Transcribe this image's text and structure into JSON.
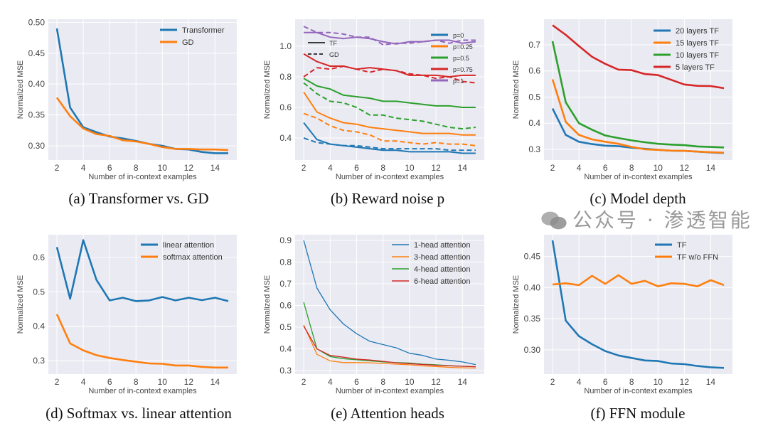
{
  "captions": [
    "(a) Transformer vs. GD",
    "(b) Reward noise p",
    "(c) Model depth",
    "(d) Softmax vs. linear attention",
    "(e) Attention heads",
    "(f) FFN module"
  ],
  "watermark": "公众号 · 渗透智能",
  "chart_data": [
    {
      "type": "line",
      "title": "(a) Transformer vs. GD",
      "xlabel": "Number of in-context examples",
      "ylabel": "Normalized MSE",
      "xlim": [
        1.35,
        15.65
      ],
      "ylim": [
        0.277,
        0.505
      ],
      "xticks": [
        2,
        4,
        6,
        8,
        10,
        12,
        14
      ],
      "yticks": [
        0.3,
        0.35,
        0.4,
        0.45,
        0.5
      ],
      "ytick_decimals": 2,
      "grid": true,
      "legend": "top-right",
      "x": [
        2,
        3,
        4,
        5,
        6,
        7,
        8,
        9,
        10,
        11,
        12,
        13,
        14,
        15
      ],
      "series": [
        {
          "name": "Transformer",
          "color": "#1f77b4",
          "style": "solid",
          "values": [
            0.49,
            0.362,
            0.33,
            0.322,
            0.315,
            0.312,
            0.308,
            0.303,
            0.3,
            0.295,
            0.294,
            0.29,
            0.288,
            0.288
          ]
        },
        {
          "name": "GD",
          "color": "#ff7f0e",
          "style": "solid",
          "values": [
            0.378,
            0.348,
            0.328,
            0.319,
            0.316,
            0.309,
            0.307,
            0.303,
            0.298,
            0.295,
            0.295,
            0.294,
            0.294,
            0.293
          ]
        }
      ]
    },
    {
      "type": "line",
      "title": "(b) Reward noise p",
      "xlabel": "Number of in-context examples",
      "ylabel": "Normalized MSE",
      "xlim": [
        1.35,
        15.65
      ],
      "ylim": [
        0.256,
        1.177
      ],
      "xticks": [
        2,
        4,
        6,
        8,
        10,
        12,
        14
      ],
      "yticks": [
        0.4,
        0.6,
        0.8,
        1.0
      ],
      "ytick_decimals": 1,
      "grid": true,
      "legend": "top-right",
      "style_legend": [
        {
          "name": "TF",
          "style": "solid"
        },
        {
          "name": "GD",
          "style": "dashed"
        }
      ],
      "x": [
        2,
        3,
        4,
        5,
        6,
        7,
        8,
        9,
        10,
        11,
        12,
        13,
        14,
        15
      ],
      "series": [
        {
          "name": "p=0",
          "color": "#1f77b4",
          "style": "solid",
          "values": [
            0.5,
            0.39,
            0.36,
            0.35,
            0.34,
            0.33,
            0.32,
            0.32,
            0.31,
            0.31,
            0.31,
            0.31,
            0.3,
            0.3
          ]
        },
        {
          "name": "p=0 GD",
          "legend": false,
          "color": "#1f77b4",
          "style": "dashed",
          "values": [
            0.4,
            0.37,
            0.36,
            0.35,
            0.35,
            0.34,
            0.33,
            0.33,
            0.33,
            0.33,
            0.33,
            0.32,
            0.32,
            0.32
          ]
        },
        {
          "name": "p=0.25",
          "color": "#ff7f0e",
          "style": "solid",
          "values": [
            0.7,
            0.57,
            0.53,
            0.5,
            0.49,
            0.47,
            0.46,
            0.45,
            0.44,
            0.43,
            0.43,
            0.43,
            0.42,
            0.42
          ]
        },
        {
          "name": "p=0.25 GD",
          "legend": false,
          "color": "#ff7f0e",
          "style": "dashed",
          "values": [
            0.56,
            0.53,
            0.48,
            0.45,
            0.44,
            0.42,
            0.38,
            0.38,
            0.37,
            0.36,
            0.37,
            0.36,
            0.36,
            0.35
          ]
        },
        {
          "name": "p=0.5",
          "color": "#2ca02c",
          "style": "solid",
          "values": [
            0.79,
            0.74,
            0.72,
            0.68,
            0.67,
            0.66,
            0.64,
            0.64,
            0.63,
            0.62,
            0.61,
            0.61,
            0.6,
            0.6
          ]
        },
        {
          "name": "p=0.5 GD",
          "legend": false,
          "color": "#2ca02c",
          "style": "dashed",
          "values": [
            0.76,
            0.69,
            0.64,
            0.63,
            0.6,
            0.55,
            0.55,
            0.53,
            0.52,
            0.51,
            0.49,
            0.47,
            0.46,
            0.47
          ]
        },
        {
          "name": "p=0.75",
          "color": "#d62728",
          "style": "solid",
          "values": [
            0.95,
            0.9,
            0.87,
            0.87,
            0.85,
            0.86,
            0.85,
            0.84,
            0.81,
            0.81,
            0.81,
            0.8,
            0.81,
            0.81
          ]
        },
        {
          "name": "p=0.75 GD",
          "legend": false,
          "color": "#d62728",
          "style": "dashed",
          "values": [
            0.8,
            0.86,
            0.85,
            0.87,
            0.85,
            0.83,
            0.85,
            0.84,
            0.82,
            0.81,
            0.79,
            0.8,
            0.77,
            0.76
          ]
        },
        {
          "name": "p=1",
          "color": "#9467bd",
          "style": "solid",
          "values": [
            1.09,
            1.09,
            1.06,
            1.05,
            1.06,
            1.05,
            1.03,
            1.015,
            1.03,
            1.03,
            1.04,
            1.04,
            1.02,
            1.03
          ]
        },
        {
          "name": "p=1 GD",
          "legend": false,
          "color": "#9467bd",
          "style": "dashed",
          "values": [
            1.13,
            1.09,
            1.09,
            1.08,
            1.06,
            1.06,
            1.01,
            1.02,
            1.02,
            1.03,
            1.04,
            1.02,
            1.04,
            1.04
          ]
        }
      ]
    },
    {
      "type": "line",
      "title": "(c) Model depth",
      "xlabel": "Number of in-context examples",
      "ylabel": "Normalized MSE",
      "xlim": [
        1.35,
        15.65
      ],
      "ylim": [
        0.259,
        0.798
      ],
      "xticks": [
        2,
        4,
        6,
        8,
        10,
        12,
        14
      ],
      "yticks": [
        0.3,
        0.4,
        0.5,
        0.6,
        0.7
      ],
      "ytick_decimals": 1,
      "grid": true,
      "legend": "top-right",
      "x": [
        2,
        3,
        4,
        5,
        6,
        7,
        8,
        9,
        10,
        11,
        12,
        13,
        14,
        15
      ],
      "series": [
        {
          "name": "20 layers TF",
          "color": "#1f77b4",
          "style": "solid",
          "values": [
            0.456,
            0.355,
            0.329,
            0.32,
            0.314,
            0.312,
            0.306,
            0.302,
            0.298,
            0.295,
            0.294,
            0.291,
            0.288,
            0.286
          ]
        },
        {
          "name": "15 layers TF",
          "color": "#ff7f0e",
          "style": "solid",
          "values": [
            0.568,
            0.405,
            0.355,
            0.338,
            0.329,
            0.321,
            0.309,
            0.3,
            0.298,
            0.295,
            0.294,
            0.291,
            0.289,
            0.287
          ]
        },
        {
          "name": "10 layers TF",
          "color": "#2ca02c",
          "style": "solid",
          "values": [
            0.714,
            0.48,
            0.4,
            0.375,
            0.353,
            0.343,
            0.334,
            0.327,
            0.321,
            0.318,
            0.316,
            0.311,
            0.309,
            0.307
          ]
        },
        {
          "name": "5 layers TF",
          "color": "#d62728",
          "style": "solid",
          "values": [
            0.775,
            0.738,
            0.695,
            0.654,
            0.627,
            0.605,
            0.603,
            0.588,
            0.584,
            0.566,
            0.548,
            0.543,
            0.542,
            0.534
          ]
        }
      ]
    },
    {
      "type": "line",
      "title": "(d) Softmax vs. linear attention",
      "xlabel": "Number of in-context examples",
      "ylabel": "Normalized MSE",
      "xlim": [
        1.35,
        15.65
      ],
      "ylim": [
        0.261,
        0.666
      ],
      "xticks": [
        2,
        4,
        6,
        8,
        10,
        12,
        14
      ],
      "yticks": [
        0.3,
        0.4,
        0.5,
        0.6
      ],
      "ytick_decimals": 1,
      "grid": true,
      "legend": "top-right",
      "x": [
        2,
        3,
        4,
        5,
        6,
        7,
        8,
        9,
        10,
        11,
        12,
        13,
        14,
        15
      ],
      "series": [
        {
          "name": "linear attention",
          "color": "#1f77b4",
          "style": "solid",
          "values": [
            0.63,
            0.48,
            0.65,
            0.535,
            0.475,
            0.483,
            0.473,
            0.475,
            0.485,
            0.475,
            0.483,
            0.476,
            0.483,
            0.473
          ]
        },
        {
          "name": "softmax attention",
          "color": "#ff7f0e",
          "style": "solid",
          "values": [
            0.435,
            0.35,
            0.33,
            0.316,
            0.308,
            0.302,
            0.297,
            0.292,
            0.291,
            0.286,
            0.286,
            0.282,
            0.28,
            0.28
          ]
        }
      ]
    },
    {
      "type": "line",
      "title": "(e) Attention heads",
      "xlabel": "Number of in-context examples",
      "ylabel": "Normalized MSE",
      "xlim": [
        1.35,
        15.65
      ],
      "ylim": [
        0.284,
        0.926
      ],
      "xticks": [
        2,
        4,
        6,
        8,
        10,
        12,
        14
      ],
      "yticks": [
        0.3,
        0.4,
        0.5,
        0.6,
        0.7,
        0.8,
        0.9
      ],
      "ytick_decimals": 1,
      "grid": true,
      "legend": "top-right",
      "thin": true,
      "x": [
        2,
        3,
        4,
        5,
        6,
        7,
        8,
        9,
        10,
        11,
        12,
        13,
        14,
        15
      ],
      "series": [
        {
          "name": "1-head attention",
          "color": "#1f77b4",
          "style": "solid",
          "values": [
            0.9,
            0.68,
            0.58,
            0.515,
            0.47,
            0.435,
            0.42,
            0.405,
            0.38,
            0.37,
            0.353,
            0.348,
            0.34,
            0.328
          ]
        },
        {
          "name": "3-head attention",
          "color": "#ff7f0e",
          "style": "solid",
          "values": [
            0.51,
            0.375,
            0.345,
            0.337,
            0.337,
            0.336,
            0.333,
            0.33,
            0.327,
            0.322,
            0.319,
            0.315,
            0.313,
            0.312
          ]
        },
        {
          "name": "4-head attention",
          "color": "#2ca02c",
          "style": "solid",
          "values": [
            0.615,
            0.4,
            0.365,
            0.355,
            0.35,
            0.345,
            0.34,
            0.337,
            0.335,
            0.33,
            0.327,
            0.323,
            0.32,
            0.318
          ]
        },
        {
          "name": "6-head attention",
          "color": "#d62728",
          "style": "solid",
          "values": [
            0.505,
            0.4,
            0.37,
            0.362,
            0.353,
            0.349,
            0.343,
            0.336,
            0.332,
            0.328,
            0.325,
            0.322,
            0.32,
            0.318
          ]
        }
      ]
    },
    {
      "type": "line",
      "title": "(f) FFN module",
      "xlabel": "Number of in-context examples",
      "ylabel": "Normalized MSE",
      "xlim": [
        1.35,
        15.65
      ],
      "ylim": [
        0.261,
        0.485
      ],
      "xticks": [
        2,
        4,
        6,
        8,
        10,
        12,
        14
      ],
      "yticks": [
        0.3,
        0.35,
        0.4,
        0.45
      ],
      "ytick_decimals": 2,
      "grid": true,
      "legend": "top-right",
      "x": [
        2,
        3,
        4,
        5,
        6,
        7,
        8,
        9,
        10,
        11,
        12,
        13,
        14,
        15
      ],
      "series": [
        {
          "name": "TF",
          "color": "#1f77b4",
          "style": "solid",
          "values": [
            0.476,
            0.347,
            0.322,
            0.309,
            0.298,
            0.291,
            0.287,
            0.283,
            0.282,
            0.278,
            0.277,
            0.274,
            0.272,
            0.271
          ]
        },
        {
          "name": "TF w/o FFN",
          "color": "#ff7f0e",
          "style": "solid",
          "values": [
            0.405,
            0.407,
            0.404,
            0.419,
            0.406,
            0.42,
            0.406,
            0.411,
            0.402,
            0.407,
            0.406,
            0.402,
            0.412,
            0.404
          ]
        }
      ]
    }
  ]
}
